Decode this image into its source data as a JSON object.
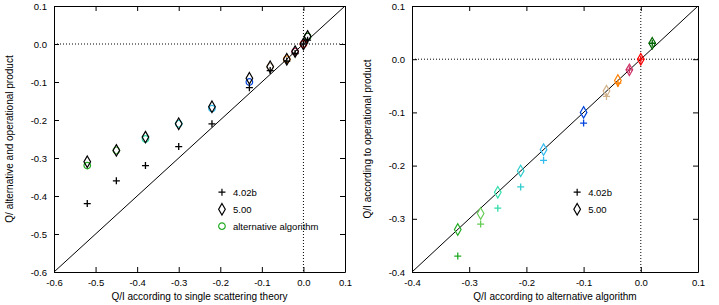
{
  "chart_data": [
    {
      "type": "scatter",
      "x_label": "Q/I according to single scattering theory",
      "y_label": "Q/ alternative and operational product",
      "xlim": [
        -0.6,
        0.1
      ],
      "ylim": [
        -0.6,
        0.1
      ],
      "xticks": [
        -0.6,
        -0.5,
        -0.4,
        -0.3,
        -0.2,
        -0.1,
        {
          "value": 0,
          "label": "0.0"
        },
        0.1
      ],
      "yticks": [
        -0.6,
        -0.5,
        -0.4,
        -0.3,
        -0.2,
        -0.1,
        {
          "value": 0,
          "label": "0.0"
        },
        0.1
      ],
      "legend": "bottom-right",
      "x": [
        -0.52,
        -0.45,
        -0.38,
        -0.3,
        -0.22,
        -0.13,
        -0.08,
        -0.04,
        -0.02,
        0.0,
        0.01
      ],
      "series": [
        {
          "name": "4.02b",
          "marker": "plus",
          "color": "#000000",
          "values": [
            -0.42,
            -0.36,
            -0.32,
            -0.27,
            -0.21,
            -0.115,
            -0.07,
            -0.045,
            -0.025,
            0.0,
            0.01
          ]
        },
        {
          "name": "5.00",
          "marker": "diamond",
          "color": "#000000",
          "values": [
            -0.31,
            -0.28,
            -0.245,
            -0.21,
            -0.165,
            -0.09,
            -0.06,
            -0.04,
            -0.02,
            0.0,
            0.02
          ]
        },
        {
          "name": "alternative algorithm",
          "marker": "circle",
          "color": "#22aa22",
          "colors": [
            "#22aa22",
            "#66cc55",
            "#33ddaa",
            "#33cccc",
            "#33bbee",
            "#0044dd",
            "#d2b48c",
            "#ff7f00",
            "#cc3366",
            "#ff0000",
            "#006600"
          ],
          "values": [
            -0.32,
            -0.28,
            -0.25,
            -0.21,
            -0.17,
            -0.1,
            -0.06,
            -0.04,
            -0.02,
            0.0,
            0.02
          ]
        }
      ]
    },
    {
      "type": "scatter",
      "x_label": "Q/I according to alternative algorithm",
      "y_label": "Q/I according to operational product",
      "xlim": [
        -0.4,
        0.1
      ],
      "ylim": [
        -0.4,
        0.1
      ],
      "xticks": [
        -0.4,
        -0.3,
        -0.2,
        -0.1,
        {
          "value": 0,
          "label": "0.0"
        },
        0.1
      ],
      "yticks": [
        -0.4,
        -0.3,
        -0.2,
        -0.1,
        {
          "value": 0,
          "label": "0.0"
        },
        0.1
      ],
      "legend": "bottom-right",
      "x": [
        -0.32,
        -0.28,
        -0.25,
        -0.21,
        -0.17,
        -0.1,
        -0.06,
        -0.04,
        -0.02,
        0.0,
        0.02
      ],
      "series": [
        {
          "name": "4.02b",
          "marker": "plus",
          "color": "#000000",
          "colors": [
            "#22aa22",
            "#66cc55",
            "#33ddaa",
            "#33cccc",
            "#33bbee",
            "#0044dd",
            "#d2b48c",
            "#ff7f00",
            "#cc3366",
            "#ff0000",
            "#006600"
          ],
          "values": [
            -0.37,
            -0.31,
            -0.28,
            -0.24,
            -0.19,
            -0.12,
            -0.07,
            -0.045,
            -0.02,
            0.0,
            0.03
          ]
        },
        {
          "name": "5.00",
          "marker": "diamond",
          "color": "#000000",
          "colors": [
            "#22aa22",
            "#66cc55",
            "#33ddaa",
            "#33cccc",
            "#33bbee",
            "#0044dd",
            "#d2b48c",
            "#ff7f00",
            "#cc3366",
            "#ff0000",
            "#006600"
          ],
          "values": [
            -0.32,
            -0.29,
            -0.25,
            -0.21,
            -0.17,
            -0.1,
            -0.06,
            -0.04,
            -0.02,
            0.0,
            0.03
          ]
        }
      ]
    }
  ]
}
